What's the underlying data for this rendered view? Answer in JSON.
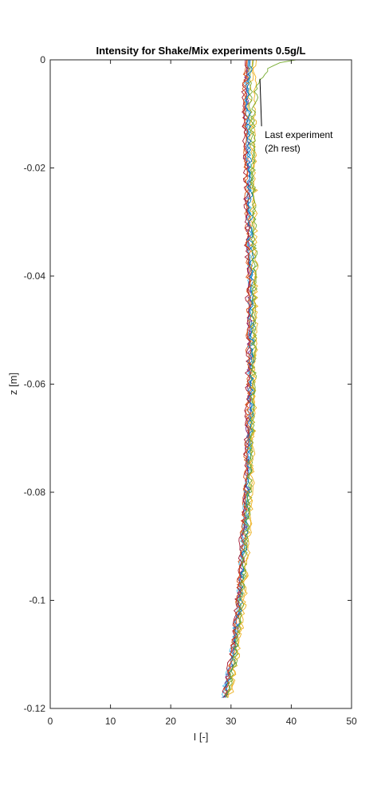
{
  "chart_data": {
    "type": "line",
    "title": "Intensity for Shake/Mix experiments 0.5g/L",
    "xlabel": "I [-]",
    "ylabel": "z [m]",
    "xlim": [
      0,
      50
    ],
    "ylim": [
      -0.12,
      0
    ],
    "xticks": [
      0,
      10,
      20,
      30,
      40,
      50
    ],
    "yticks": [
      -0.12,
      -0.1,
      -0.08,
      -0.06,
      -0.04,
      -0.02,
      0
    ],
    "xtick_labels": [
      "0",
      "10",
      "20",
      "30",
      "40",
      "50"
    ],
    "ytick_labels": [
      "-0.12",
      "-0.1",
      "-0.08",
      "-0.06",
      "-0.04",
      "-0.02",
      "0"
    ],
    "grid": false,
    "annotation": {
      "lines": [
        "Last experiment",
        "(2h rest)"
      ],
      "text_at": {
        "x": 35.6,
        "y": -0.0145
      },
      "points_to": {
        "x": 34.8,
        "y": -0.0035
      }
    },
    "series_colors": [
      "#0072BD",
      "#D95319",
      "#EDB120",
      "#7E2F8E",
      "#77AC30",
      "#4DBEEE",
      "#A2142F"
    ],
    "series": [
      {
        "color": "#0072BD",
        "z": [
          0,
          -0.005,
          -0.02,
          -0.04,
          -0.06,
          -0.08,
          -0.1,
          -0.11,
          -0.118
        ],
        "I": [
          33.0,
          32.6,
          32.9,
          33.3,
          33.3,
          32.7,
          31.4,
          30.4,
          28.9
        ]
      },
      {
        "color": "#D95319",
        "z": [
          0,
          -0.005,
          -0.02,
          -0.04,
          -0.06,
          -0.08,
          -0.1,
          -0.11,
          -0.118
        ],
        "I": [
          32.6,
          32.2,
          32.5,
          32.9,
          32.9,
          32.4,
          31.2,
          30.2,
          29.1
        ]
      },
      {
        "color": "#EDB120",
        "z": [
          0,
          -0.005,
          -0.02,
          -0.04,
          -0.06,
          -0.08,
          -0.1,
          -0.11,
          -0.118
        ],
        "I": [
          33.6,
          33.1,
          33.4,
          33.8,
          33.7,
          33.2,
          32.0,
          31.0,
          29.6
        ]
      },
      {
        "color": "#7E2F8E",
        "z": [
          0,
          -0.005,
          -0.02,
          -0.04,
          -0.06,
          -0.08,
          -0.1,
          -0.11,
          -0.118
        ],
        "I": [
          32.9,
          32.4,
          32.7,
          33.1,
          33.1,
          32.6,
          31.4,
          30.3,
          28.8
        ]
      },
      {
        "color": "#77AC30",
        "z": [
          0,
          -0.005,
          -0.02,
          -0.04,
          -0.06,
          -0.08,
          -0.1,
          -0.11,
          -0.118
        ],
        "I": [
          33.7,
          33.3,
          33.6,
          34.0,
          33.8,
          33.1,
          31.8,
          30.8,
          29.4
        ]
      },
      {
        "color": "#4DBEEE",
        "z": [
          0,
          -0.005,
          -0.02,
          -0.04,
          -0.06,
          -0.08,
          -0.1,
          -0.11,
          -0.118
        ],
        "I": [
          32.9,
          32.6,
          32.9,
          33.2,
          33.2,
          32.6,
          31.3,
          30.1,
          28.6
        ]
      },
      {
        "color": "#A2142F",
        "z": [
          0,
          -0.005,
          -0.02,
          -0.04,
          -0.06,
          -0.08,
          -0.1,
          -0.11,
          -0.118
        ],
        "I": [
          32.4,
          32.1,
          32.4,
          32.8,
          32.8,
          32.3,
          31.1,
          30.0,
          28.9
        ]
      },
      {
        "color": "#0072BD",
        "z": [
          0,
          -0.005,
          -0.02,
          -0.04,
          -0.06,
          -0.08,
          -0.1,
          -0.11,
          -0.118
        ],
        "I": [
          33.2,
          32.8,
          33.1,
          33.4,
          33.5,
          32.9,
          31.6,
          30.6,
          29.0
        ]
      },
      {
        "color": "#D95319",
        "z": [
          0,
          -0.005,
          -0.02,
          -0.04,
          -0.06,
          -0.08,
          -0.1,
          -0.11,
          -0.118
        ],
        "I": [
          32.7,
          32.3,
          32.6,
          33.0,
          33.0,
          32.5,
          31.3,
          30.3,
          28.9
        ]
      },
      {
        "color": "#EDB120",
        "z": [
          0,
          -0.005,
          -0.02,
          -0.04,
          -0.06,
          -0.08,
          -0.1,
          -0.11,
          -0.118
        ],
        "I": [
          34.2,
          33.8,
          34.0,
          34.1,
          33.9,
          33.4,
          32.2,
          31.1,
          29.8
        ]
      },
      {
        "color": "#77AC30",
        "z": [
          0,
          -0.0005,
          -0.0015,
          -0.003,
          -0.005,
          -0.01,
          -0.02,
          -0.04,
          -0.06,
          -0.08,
          -0.1,
          -0.11,
          -0.118
        ],
        "I": [
          40.8,
          38.2,
          36.2,
          35.0,
          34.3,
          33.7,
          33.6,
          33.9,
          33.7,
          33.0,
          31.7,
          30.7,
          29.3
        ]
      }
    ]
  }
}
